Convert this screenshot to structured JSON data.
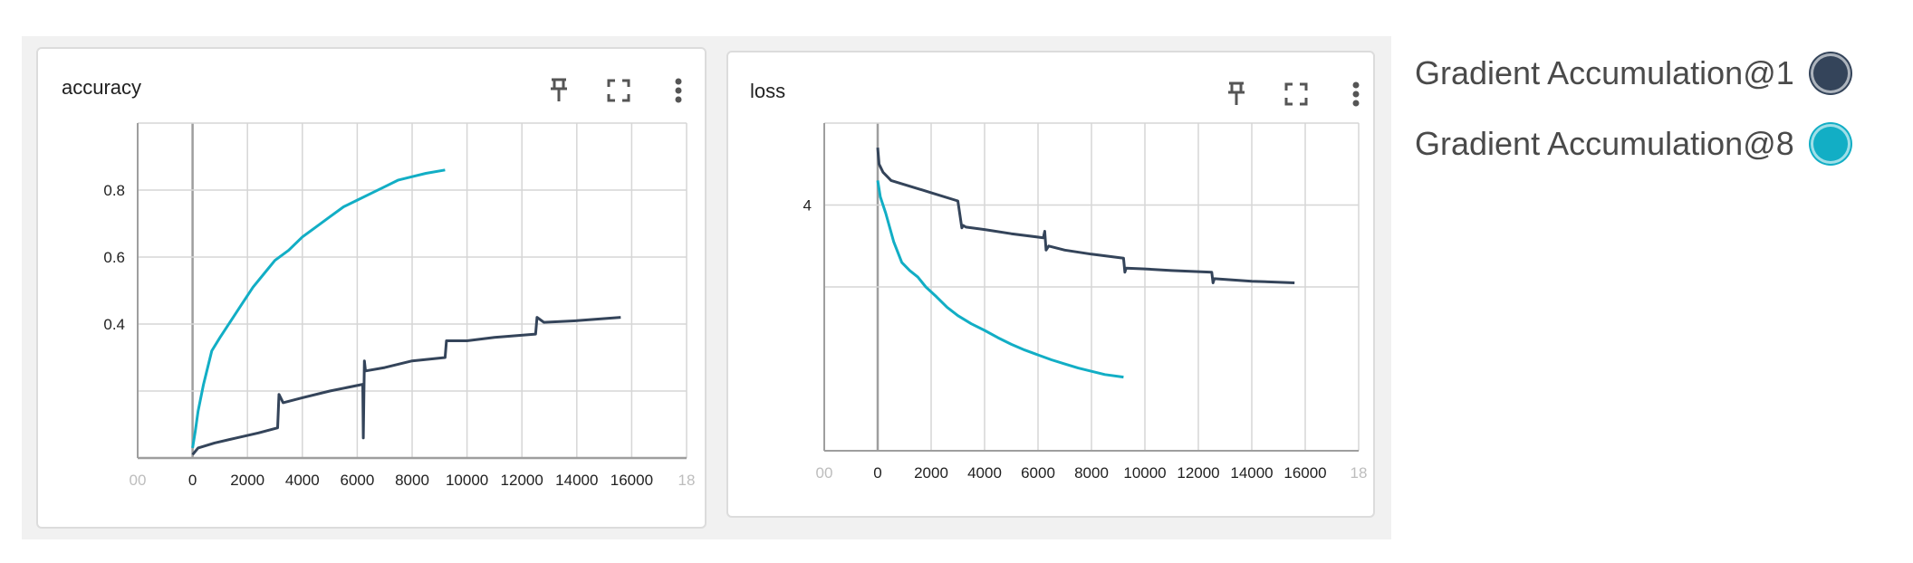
{
  "colors": {
    "series1": "#34445a",
    "series8": "#12aec5",
    "grid": "#d6d6d6",
    "axis": "#9e9e9e"
  },
  "icons": {
    "pin": "pin-icon",
    "fullscreen": "fullscreen-icon",
    "more": "more-vert-icon"
  },
  "legend": {
    "items": [
      {
        "label": "Gradient Accumulation@1",
        "color": "#34445a"
      },
      {
        "label": "Gradient Accumulation@8",
        "color": "#12aec5"
      }
    ]
  },
  "chart_data": [
    {
      "type": "line",
      "title": "accuracy",
      "xlabel": "",
      "ylabel": "",
      "xlim": [
        -2000,
        18000
      ],
      "ylim": [
        0.0,
        1.0
      ],
      "x_ticks": [
        "00",
        "0",
        "2000",
        "4000",
        "6000",
        "8000",
        "10000",
        "12000",
        "14000",
        "16000",
        "18"
      ],
      "y_ticks": [
        "0.8",
        "0.6",
        "0.4"
      ],
      "grid": true,
      "series": [
        {
          "name": "Gradient Accumulation@1",
          "x": [
            0,
            200,
            800,
            1600,
            2400,
            3100,
            3150,
            3300,
            4000,
            5000,
            6200,
            6220,
            6260,
            6300,
            7000,
            8000,
            9200,
            9250,
            10000,
            11000,
            12500,
            12550,
            12800,
            14000,
            15600
          ],
          "y": [
            0.01,
            0.03,
            0.045,
            0.06,
            0.075,
            0.09,
            0.19,
            0.165,
            0.18,
            0.2,
            0.22,
            0.06,
            0.29,
            0.26,
            0.27,
            0.29,
            0.3,
            0.35,
            0.35,
            0.36,
            0.37,
            0.42,
            0.405,
            0.41,
            0.42
          ]
        },
        {
          "name": "Gradient Accumulation@8",
          "x": [
            0,
            100,
            200,
            400,
            700,
            1000,
            1400,
            1800,
            2200,
            2600,
            3000,
            3500,
            4000,
            4500,
            5000,
            5500,
            6000,
            6500,
            7000,
            7500,
            8000,
            8500,
            9200
          ],
          "y": [
            0.03,
            0.08,
            0.14,
            0.22,
            0.32,
            0.36,
            0.41,
            0.46,
            0.51,
            0.55,
            0.59,
            0.62,
            0.66,
            0.69,
            0.72,
            0.75,
            0.77,
            0.79,
            0.81,
            0.83,
            0.84,
            0.85,
            0.86
          ]
        }
      ]
    },
    {
      "type": "line",
      "title": "loss",
      "xlabel": "",
      "ylabel": "",
      "xlim": [
        -2000,
        18000
      ],
      "ylim": [
        1.0,
        5.0
      ],
      "x_ticks": [
        "00",
        "0",
        "2000",
        "4000",
        "6000",
        "8000",
        "10000",
        "12000",
        "14000",
        "16000",
        "18"
      ],
      "y_ticks": [
        "4"
      ],
      "grid": true,
      "series": [
        {
          "name": "Gradient Accumulation@1",
          "x": [
            0,
            50,
            200,
            500,
            1000,
            2000,
            3000,
            3150,
            3200,
            3300,
            4000,
            5000,
            6200,
            6250,
            6300,
            6400,
            7000,
            8000,
            9200,
            9250,
            9300,
            10000,
            11000,
            12500,
            12550,
            12600,
            14000,
            15600
          ],
          "y": [
            4.7,
            4.5,
            4.4,
            4.3,
            4.25,
            4.15,
            4.05,
            3.72,
            3.75,
            3.73,
            3.7,
            3.65,
            3.6,
            3.68,
            3.45,
            3.5,
            3.45,
            3.4,
            3.35,
            3.18,
            3.23,
            3.22,
            3.2,
            3.18,
            3.05,
            3.1,
            3.07,
            3.05
          ]
        },
        {
          "name": "Gradient Accumulation@8",
          "x": [
            0,
            100,
            300,
            600,
            900,
            1200,
            1500,
            1800,
            2200,
            2600,
            3000,
            3500,
            4000,
            4500,
            5000,
            5500,
            6000,
            6500,
            7000,
            7500,
            8000,
            8500,
            9200
          ],
          "y": [
            4.3,
            4.1,
            3.9,
            3.55,
            3.3,
            3.2,
            3.12,
            3.0,
            2.88,
            2.75,
            2.65,
            2.55,
            2.47,
            2.38,
            2.3,
            2.23,
            2.17,
            2.11,
            2.06,
            2.01,
            1.97,
            1.93,
            1.9
          ]
        }
      ]
    }
  ]
}
